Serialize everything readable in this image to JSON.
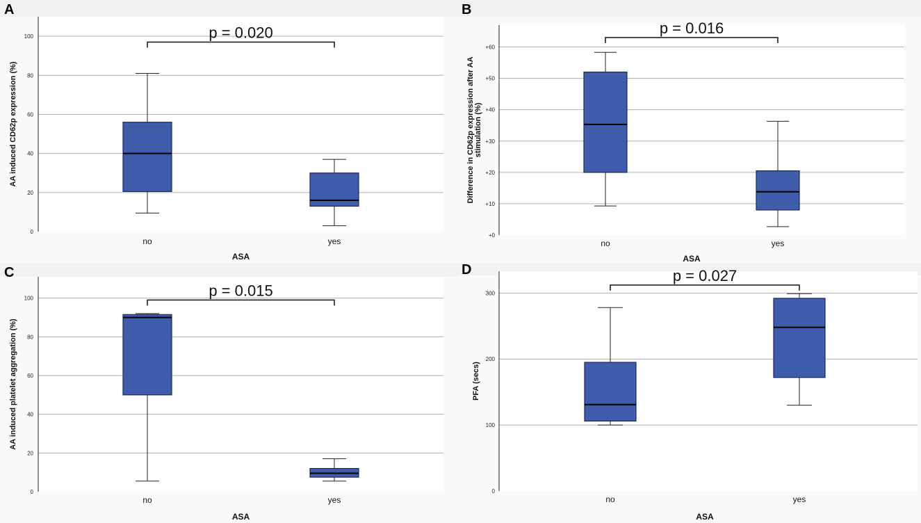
{
  "colors": {
    "box_fill": "#3f5dab",
    "box_stroke": "#1c2a57",
    "grid": "#b0b0b0",
    "plot_bg": "#ffffff",
    "strip": "#f2f2f2"
  },
  "chart_data": [
    {
      "panel": "A",
      "type": "box",
      "ylabel": "AA induced CD62p expression (%)",
      "xlabel": "ASA",
      "categories": [
        "no",
        "yes"
      ],
      "ylim": [
        0,
        110
      ],
      "yticks": [
        0,
        20,
        40,
        60,
        80,
        100
      ],
      "ytick_labels": [
        "0",
        "20",
        "40",
        "60",
        "80",
        "100"
      ],
      "boxes": [
        {
          "category": "no",
          "min": 9.5,
          "q1": 20.5,
          "median": 40,
          "q3": 56,
          "max": 81
        },
        {
          "category": "yes",
          "min": 3,
          "q1": 13,
          "median": 16,
          "q3": 30,
          "max": 37
        }
      ],
      "annotation": {
        "text": "p = 0.020",
        "y": 97
      }
    },
    {
      "panel": "B",
      "type": "box",
      "ylabel": "Difference in CD62p expression after AA stimulation (%)",
      "ylabel_lines": [
        "Difference in CD62p expression after AA",
        "stimulation (%)"
      ],
      "xlabel": "ASA",
      "categories": [
        "no",
        "yes"
      ],
      "ylim": [
        0,
        67
      ],
      "yticks": [
        0,
        10,
        20,
        30,
        40,
        50,
        60
      ],
      "ytick_labels": [
        "+0",
        "+10",
        "+20",
        "+30",
        "+40",
        "+50",
        "+60"
      ],
      "boxes": [
        {
          "category": "no",
          "min": 9.3,
          "q1": 20,
          "median": 35.3,
          "q3": 52,
          "max": 58.3
        },
        {
          "category": "yes",
          "min": 2.7,
          "q1": 8,
          "median": 13.8,
          "q3": 20.5,
          "max": 36.3
        }
      ],
      "annotation": {
        "text": "p = 0.016",
        "y": 63
      }
    },
    {
      "panel": "C",
      "type": "box",
      "ylabel": "AA induced platelet aggregation (%)",
      "xlabel": "ASA",
      "categories": [
        "no",
        "yes"
      ],
      "ylim": [
        0,
        111
      ],
      "yticks": [
        0,
        20,
        40,
        60,
        80,
        100
      ],
      "ytick_labels": [
        "0",
        "20",
        "40",
        "60",
        "80",
        "100"
      ],
      "boxes": [
        {
          "category": "no",
          "min": 5.5,
          "q1": 50,
          "median": 90,
          "q3": 91.5,
          "max": 92
        },
        {
          "category": "yes",
          "min": 5.5,
          "q1": 7.5,
          "median": 9.5,
          "q3": 12,
          "max": 17
        }
      ],
      "annotation": {
        "text": "p = 0.015",
        "y": 99
      }
    },
    {
      "panel": "D",
      "type": "box",
      "ylabel": "PFA (secs)",
      "xlabel": "ASA",
      "categories": [
        "no",
        "yes"
      ],
      "ylim": [
        0,
        333
      ],
      "yticks": [
        0,
        100,
        200,
        300
      ],
      "ytick_labels": [
        "0",
        "100",
        "200",
        "300"
      ],
      "boxes": [
        {
          "category": "no",
          "min": 100,
          "q1": 106,
          "median": 131,
          "q3": 195,
          "max": 278
        },
        {
          "category": "yes",
          "min": 130,
          "q1": 172,
          "median": 248,
          "q3": 292,
          "max": 299
        }
      ],
      "annotation": {
        "text": "p = 0.027",
        "y": 312
      }
    }
  ]
}
